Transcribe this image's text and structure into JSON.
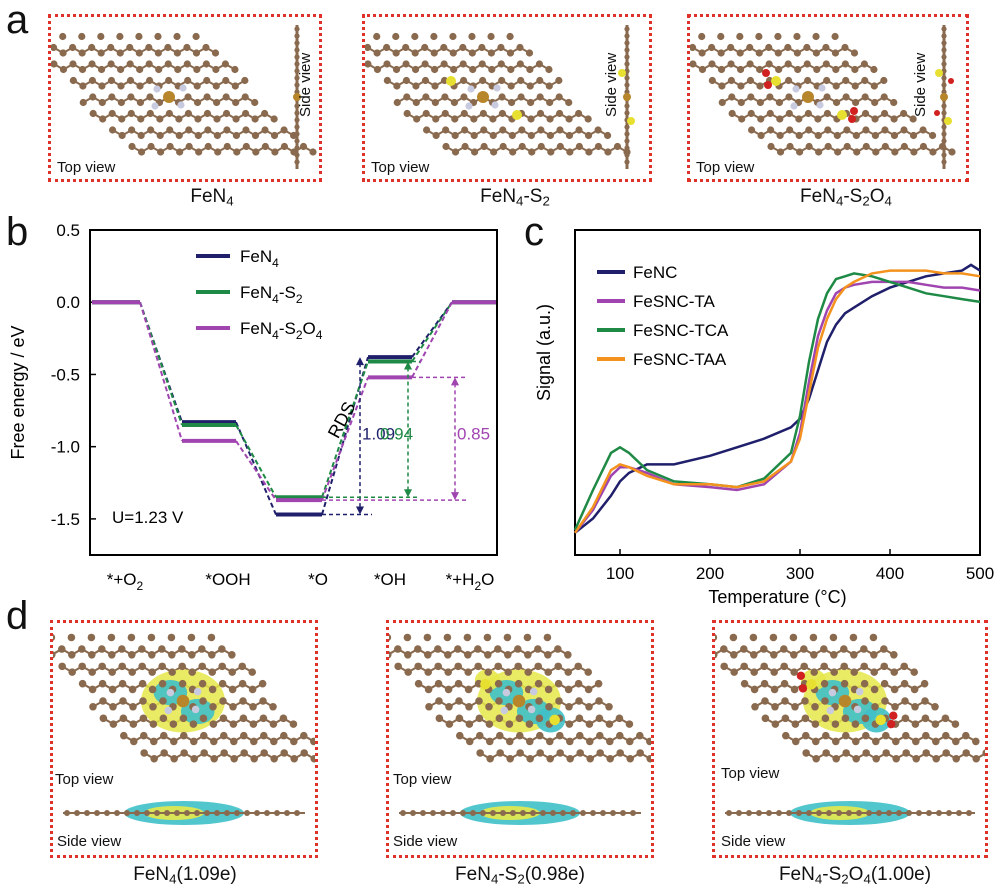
{
  "panels": {
    "a": {
      "letter": "a",
      "structures": [
        {
          "name": "FeN4",
          "caption_base": "FeN",
          "caption_parts": [
            "4"
          ]
        },
        {
          "name": "FeN4-S2",
          "caption_base": "FeN",
          "caption_parts": [
            "4",
            "-S",
            "2"
          ]
        },
        {
          "name": "FeN4-S2O4",
          "caption_base": "FeN",
          "caption_parts": [
            "4",
            "-S",
            "2",
            "O",
            "4"
          ]
        }
      ],
      "top_view_label": "Top view",
      "side_view_label": "Side view"
    },
    "b": {
      "letter": "b"
    },
    "c": {
      "letter": "c"
    },
    "d": {
      "letter": "d",
      "structures": [
        {
          "name": "FeN4",
          "caption": "FeN4(1.09e)"
        },
        {
          "name": "FeN4-S2",
          "caption": "FeN4-S2(0.98e)"
        },
        {
          "name": "FeN4-S2O4",
          "caption": "FeN4-S2O4(1.00e)"
        }
      ],
      "top_view_label": "Top view",
      "side_view_label": "Side view"
    }
  },
  "colors": {
    "feN4": "#1f1f6b",
    "feN4_s2": "#1e8a45",
    "feN4_s2o4": "#a045b0",
    "FeNC": "#1f1f6b",
    "FeSNC_TA": "#a045b0",
    "FeSNC_TCA": "#1e8a45",
    "FeSNC_TAA": "#f4921e",
    "frame_red": "#e0302a",
    "carbon": "#8a6a4e",
    "nitrogen": "#c8cbe0",
    "iron": "#b8862a",
    "sulfur": "#e8e030",
    "oxygen": "#d02020",
    "isosurface_yellow": "#e6e84a",
    "isosurface_cyan": "#3fc0c8"
  },
  "chart_data": [
    {
      "type": "line",
      "panel": "b",
      "ylabel": "Free energy / eV",
      "ylim": [
        -1.75,
        0.5
      ],
      "yticks": [
        0.5,
        0.0,
        -0.5,
        -1.0,
        -1.5
      ],
      "ytick_labels": [
        "0.5",
        "0.0",
        "-0.5",
        "-1.0",
        "-1.5"
      ],
      "categories": [
        "*+O2",
        "*OOH",
        "*O",
        "*OH",
        "*+H2O"
      ],
      "category_labels": [
        {
          "base": "*+O",
          "sub": "2"
        },
        {
          "base": "*OOH",
          "sub": ""
        },
        {
          "base": "*O",
          "sub": ""
        },
        {
          "base": "*OH",
          "sub": ""
        },
        {
          "base": "*+H",
          "sub": "2",
          "tail": "O"
        }
      ],
      "series": [
        {
          "name": "FeN4",
          "legend_parts": [
            "FeN",
            "4"
          ],
          "values": [
            0.0,
            -0.83,
            -1.47,
            -0.38,
            0.0
          ]
        },
        {
          "name": "FeN4-S2",
          "legend_parts": [
            "FeN",
            "4",
            "-S",
            "2"
          ],
          "values": [
            0.0,
            -0.85,
            -1.35,
            -0.41,
            0.0
          ]
        },
        {
          "name": "FeN4-S2O4",
          "legend_parts": [
            "FeN",
            "4",
            "-S",
            "2",
            "O",
            "4"
          ],
          "values": [
            0.0,
            -0.96,
            -1.37,
            -0.52,
            0.0
          ]
        }
      ],
      "annotations": {
        "condition": "U=1.23 V",
        "rds": "RDS",
        "gaps": [
          {
            "series": "FeN4",
            "label": "1.09"
          },
          {
            "series": "FeN4-S2",
            "label": "0.94"
          },
          {
            "series": "FeN4-S2O4",
            "label": "0.85"
          }
        ]
      },
      "legend_placement": "top-left"
    },
    {
      "type": "line",
      "panel": "c",
      "xlabel": "Temperature (°C)",
      "ylabel": "Signal (a.u.)",
      "xlim": [
        50,
        500
      ],
      "xticks": [
        100,
        200,
        300,
        400,
        500
      ],
      "series": [
        {
          "name": "FeNC",
          "x": [
            50,
            70,
            90,
            100,
            110,
            130,
            160,
            200,
            230,
            260,
            290,
            300,
            310,
            320,
            330,
            340,
            350,
            360,
            380,
            400,
            420,
            440,
            460,
            480,
            490,
            500
          ],
          "y": [
            0.05,
            0.1,
            0.18,
            0.23,
            0.26,
            0.29,
            0.29,
            0.32,
            0.35,
            0.38,
            0.42,
            0.45,
            0.52,
            0.62,
            0.72,
            0.78,
            0.82,
            0.84,
            0.88,
            0.91,
            0.93,
            0.95,
            0.96,
            0.97,
            0.99,
            0.97
          ]
        },
        {
          "name": "FeSNC-TA",
          "x": [
            50,
            70,
            90,
            100,
            110,
            130,
            160,
            200,
            230,
            260,
            290,
            300,
            310,
            320,
            330,
            340,
            350,
            360,
            380,
            400,
            420,
            440,
            460,
            480,
            500
          ],
          "y": [
            0.05,
            0.13,
            0.25,
            0.28,
            0.28,
            0.26,
            0.22,
            0.21,
            0.2,
            0.22,
            0.3,
            0.4,
            0.58,
            0.74,
            0.83,
            0.89,
            0.91,
            0.92,
            0.93,
            0.93,
            0.93,
            0.92,
            0.91,
            0.91,
            0.9
          ]
        },
        {
          "name": "FeSNC-TCA",
          "x": [
            50,
            70,
            90,
            100,
            110,
            130,
            160,
            200,
            230,
            260,
            290,
            300,
            310,
            320,
            330,
            340,
            350,
            360,
            380,
            400,
            420,
            440,
            460,
            480,
            500
          ],
          "y": [
            0.06,
            0.2,
            0.33,
            0.35,
            0.33,
            0.27,
            0.23,
            0.22,
            0.21,
            0.24,
            0.33,
            0.46,
            0.65,
            0.8,
            0.89,
            0.94,
            0.95,
            0.96,
            0.95,
            0.93,
            0.91,
            0.89,
            0.88,
            0.87,
            0.86
          ]
        },
        {
          "name": "FeSNC-TAA",
          "x": [
            50,
            70,
            90,
            100,
            110,
            130,
            160,
            200,
            230,
            260,
            290,
            300,
            310,
            320,
            330,
            340,
            350,
            360,
            380,
            400,
            420,
            440,
            460,
            480,
            500
          ],
          "y": [
            0.05,
            0.14,
            0.27,
            0.29,
            0.28,
            0.25,
            0.22,
            0.22,
            0.21,
            0.23,
            0.3,
            0.38,
            0.54,
            0.7,
            0.8,
            0.87,
            0.91,
            0.93,
            0.96,
            0.97,
            0.97,
            0.97,
            0.96,
            0.96,
            0.95
          ]
        }
      ],
      "legend_placement": "top-left"
    }
  ]
}
